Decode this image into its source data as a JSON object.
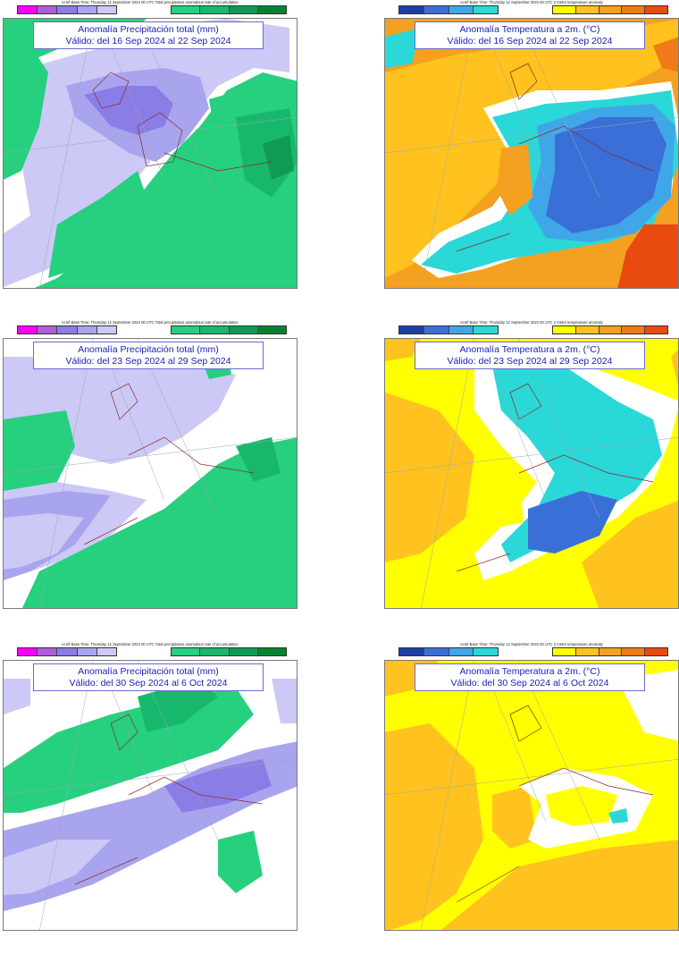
{
  "base_precip": "ecmf  Base Time: Thursday 12 September 2024 00 UTC Total precipitation anomalous rate of accumulation",
  "base_temp": "ecmf  Base Time: Thursday 12 September 2024 00 UTC 2 metre temperature anomaly",
  "precip_legend": {
    "colors": [
      "#ff00ff",
      "#b05bd8",
      "#8b7de6",
      "#a9a4ee",
      "#ccc9f6",
      "#26d07f",
      "#18b86c",
      "#0f9a56",
      "#06822f"
    ],
    "ticks": [
      "-200",
      "-60",
      "-30",
      "-10",
      "-5",
      "0",
      "5",
      "10",
      "30",
      "60",
      "200"
    ]
  },
  "temp_legend": {
    "colors": [
      "#1b3fa6",
      "#3a6fd8",
      "#3fa7e8",
      "#2ad8d8",
      "#ffff00",
      "#ffc21f",
      "#f4a020",
      "#f07a18",
      "#e84a10"
    ],
    "ticks": [
      "-12",
      "-8",
      "-4",
      "-2",
      "-1",
      "0",
      "1",
      "2",
      "4",
      "8",
      "12"
    ]
  },
  "panels": [
    {
      "title": "Anomalía Precipitación total (mm)",
      "period": "Válido: del 16 Sep 2024 al 22 Sep 2024"
    },
    {
      "title": "Anomalía Temperatura a 2m. (°C)",
      "period": "Válido: del 16 Sep 2024 al 22 Sep 2024"
    },
    {
      "title": "Anomalía Precipitación total (mm)",
      "period": "Válido: del 23 Sep 2024 al 29 Sep 2024"
    },
    {
      "title": "Anomalía Temperatura a 2m. (°C)",
      "period": "Válido: del 23 Sep 2024 al 29 Sep 2024"
    },
    {
      "title": "Anomalía Precipitación total (mm)",
      "period": "Válido: del 30 Sep 2024 al 6 Oct 2024"
    },
    {
      "title": "Anomalía Temperatura a 2m. (°C)",
      "period": "Válido: del 30 Sep 2024 al 6 Oct 2024"
    }
  ]
}
